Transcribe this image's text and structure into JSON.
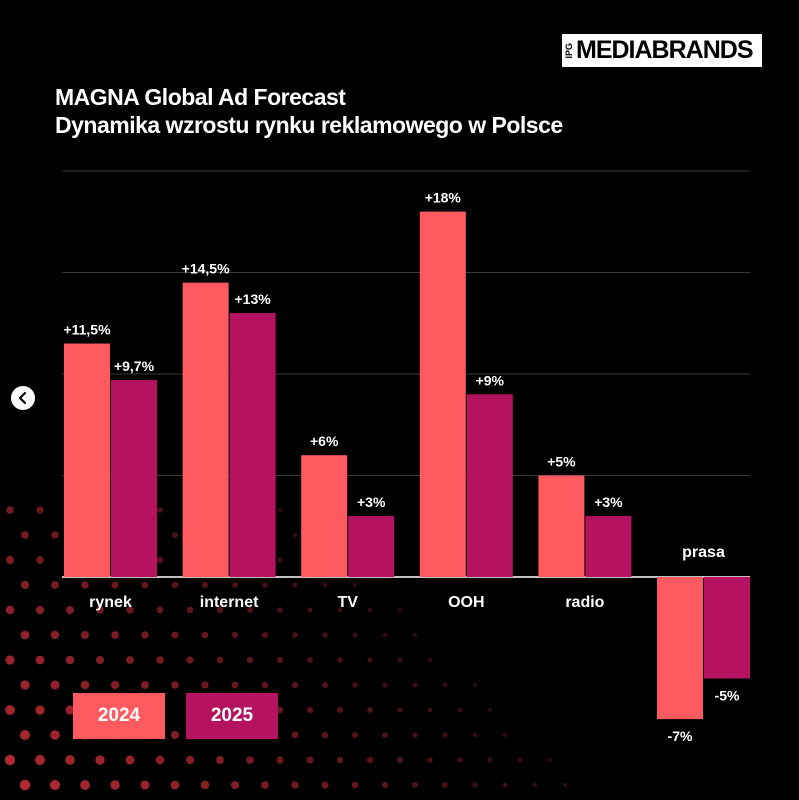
{
  "brand": {
    "prefix": "IPG",
    "name": "MEDIABRANDS"
  },
  "title_line1": "MAGNA Global Ad Forecast",
  "title_line2": "Dynamika wzrostu rynku reklamowego w Polsce",
  "colors": {
    "y2024": "#ff5a5f",
    "y2025": "#b5135f",
    "background": "#000000",
    "grid": "#3a3a3a",
    "text": "#ffffff"
  },
  "legend": {
    "label_2024": "2024",
    "label_2025": "2025"
  },
  "chart_data": {
    "type": "bar",
    "title": "MAGNA Global Ad Forecast – Dynamika wzrostu rynku reklamowego w Polsce",
    "categories": [
      "rynek",
      "internet",
      "TV",
      "OOH",
      "radio",
      "prasa"
    ],
    "series": [
      {
        "name": "2024",
        "values": [
          11.5,
          14.5,
          6,
          18,
          5,
          -7
        ],
        "labels": [
          "+11,5%",
          "+14,5%",
          "+6%",
          "+18%",
          "+5%",
          "-7%"
        ]
      },
      {
        "name": "2025",
        "values": [
          9.7,
          13,
          3,
          9,
          3,
          -5
        ],
        "labels": [
          "+9,7%",
          "+13%",
          "+3%",
          "+9%",
          "+3%",
          "-5%"
        ]
      }
    ],
    "xlabel": "",
    "ylabel": "",
    "ylim": [
      -7,
      20
    ],
    "grid": true,
    "legend": "bottom-left"
  }
}
